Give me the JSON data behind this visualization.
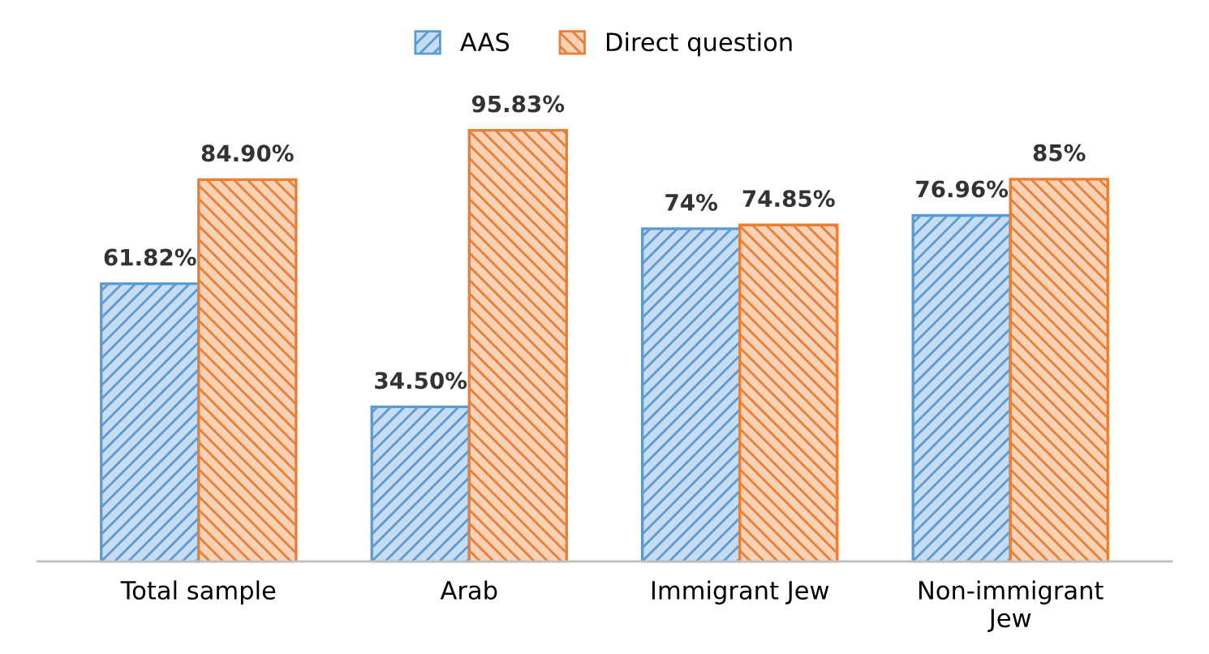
{
  "chart_data": {
    "type": "bar",
    "categories": [
      "Total sample",
      "Arab",
      "Immigrant Jew",
      "Non-immigrant\nJew"
    ],
    "series": [
      {
        "name": "AAS",
        "color": "#5b9bd5",
        "values": [
          61.82,
          34.5,
          74,
          76.96
        ],
        "value_labels": [
          "61.82%",
          "34.50%",
          "74%",
          "76.96%"
        ]
      },
      {
        "name": "Direct question",
        "color": "#ed7d31",
        "values": [
          84.9,
          95.83,
          74.85,
          85
        ],
        "value_labels": [
          "84.90%",
          "95.83%",
          "74.85%",
          "85%"
        ]
      }
    ],
    "legend": "top"
  }
}
